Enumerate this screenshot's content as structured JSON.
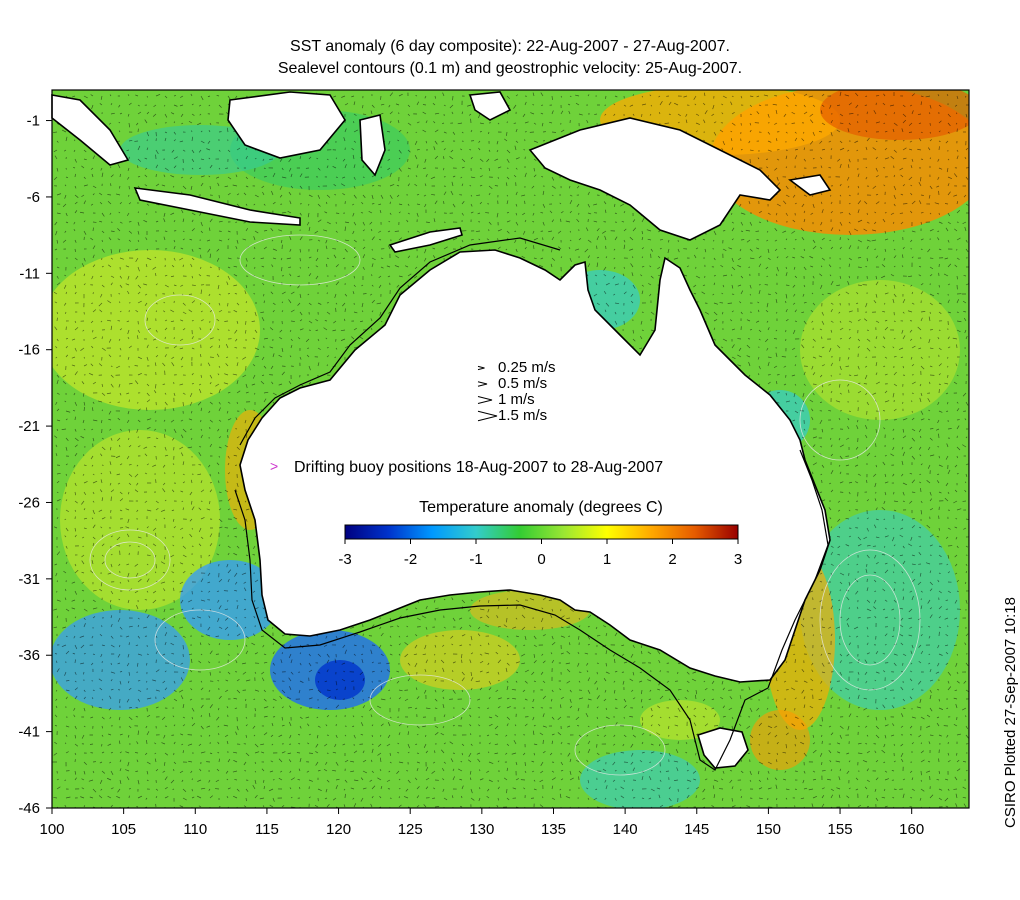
{
  "title": {
    "line1": "SST anomaly (6 day composite): 22-Aug-2007 - 27-Aug-2007.",
    "line2": "Sealevel contours (0.1 m) and geostrophic velocity: 25-Aug-2007."
  },
  "map": {
    "x_ticks": [
      {
        "value": 100,
        "label": "100"
      },
      {
        "value": 105,
        "label": "105"
      },
      {
        "value": 110,
        "label": "110"
      },
      {
        "value": 115,
        "label": "115"
      },
      {
        "value": 120,
        "label": "120"
      },
      {
        "value": 125,
        "label": "125"
      },
      {
        "value": 130,
        "label": "130"
      },
      {
        "value": 135,
        "label": "135"
      },
      {
        "value": 140,
        "label": "140"
      },
      {
        "value": 145,
        "label": "145"
      },
      {
        "value": 150,
        "label": "150"
      },
      {
        "value": 155,
        "label": "155"
      },
      {
        "value": 160,
        "label": "160"
      }
    ],
    "y_ticks": [
      {
        "value": -1,
        "label": "-1"
      },
      {
        "value": -6,
        "label": "-6"
      },
      {
        "value": -11,
        "label": "-11"
      },
      {
        "value": -16,
        "label": "-16"
      },
      {
        "value": -21,
        "label": "-21"
      },
      {
        "value": -26,
        "label": "-26"
      },
      {
        "value": -31,
        "label": "-31"
      },
      {
        "value": -36,
        "label": "-36"
      },
      {
        "value": -41,
        "label": "-41"
      },
      {
        "value": -46,
        "label": "-46"
      }
    ],
    "lon_range": [
      100,
      164
    ],
    "lat_range": [
      -46,
      1
    ],
    "velocity_legend": [
      {
        "label": "0.25 m/s",
        "speed": 0.25
      },
      {
        "label": "0.5 m/s",
        "speed": 0.5
      },
      {
        "label": "1 m/s",
        "speed": 1
      },
      {
        "label": "1.5 m/s",
        "speed": 1.5
      }
    ],
    "buoy_legend": {
      "label": "Drifting buoy positions 18-Aug-2007 to 28-Aug-2007",
      "marker": ">",
      "color": "#cc33cc"
    },
    "colorbar": {
      "title": "Temperature anomaly (degrees C)",
      "ticks": [
        {
          "value": -3,
          "label": "-3"
        },
        {
          "value": -2,
          "label": "-2"
        },
        {
          "value": -1,
          "label": "-1"
        },
        {
          "value": 0,
          "label": "0"
        },
        {
          "value": 1,
          "label": "1"
        },
        {
          "value": 2,
          "label": "2"
        },
        {
          "value": 3,
          "label": "3"
        }
      ],
      "range": [
        -3,
        3
      ],
      "colors": [
        "#000080",
        "#0033cc",
        "#0099ff",
        "#33cccc",
        "#33cc33",
        "#99e633",
        "#ffff00",
        "#ffaa00",
        "#e65c00",
        "#990000"
      ]
    },
    "credit": "CSIRO Plotted 27-Sep-2007 10:18"
  }
}
